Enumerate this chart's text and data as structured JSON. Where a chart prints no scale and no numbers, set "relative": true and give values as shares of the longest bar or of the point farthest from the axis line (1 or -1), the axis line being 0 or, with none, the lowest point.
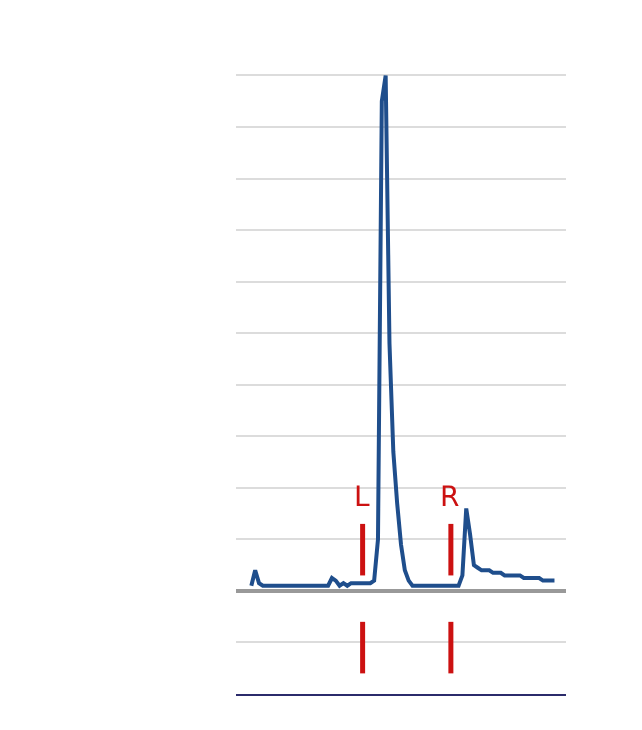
{
  "chart_data": {
    "type": "line",
    "relative": true,
    "grid": true,
    "marker": "none",
    "line_style": "solid",
    "categories": [
      null,
      null,
      null,
      null,
      null,
      null,
      null,
      null,
      null,
      null,
      null,
      null,
      null,
      null,
      null,
      null,
      null,
      null,
      null,
      null,
      null,
      null,
      null,
      null,
      null,
      null,
      null,
      null,
      null,
      null,
      null,
      null,
      null,
      null,
      null,
      null,
      null,
      null,
      null,
      null,
      null,
      null,
      null,
      null,
      null,
      null,
      null,
      null,
      null,
      null,
      null,
      null,
      null,
      null,
      null,
      null,
      null,
      null,
      null,
      null,
      null,
      null,
      null,
      null,
      null,
      null,
      null,
      null,
      null,
      null,
      null,
      null,
      null,
      null,
      null,
      null,
      null,
      null,
      null,
      null
    ],
    "series": [
      {
        "color": "#1f4e8c",
        "values": [
          0.01,
          0.04,
          0.015,
          0.01,
          0.01,
          0.01,
          0.01,
          0.01,
          0.01,
          0.01,
          0.01,
          0.01,
          0.01,
          0.01,
          0.01,
          0.01,
          0.01,
          0.01,
          0.01,
          0.01,
          0.01,
          0.025,
          0.02,
          0.01,
          0.015,
          0.01,
          0.015,
          0.015,
          0.015,
          0.015,
          0.015,
          0.015,
          0.02,
          0.1,
          0.95,
          1,
          0.48,
          0.27,
          0.17,
          0.09,
          0.04,
          0.02,
          0.01,
          0.01,
          0.01,
          0.01,
          0.01,
          0.01,
          0.01,
          0.01,
          0.01,
          0.01,
          0.01,
          0.01,
          0.01,
          0.03,
          0.16,
          0.11,
          0.05,
          0.045,
          0.04,
          0.04,
          0.04,
          0.035,
          0.035,
          0.035,
          0.03,
          0.03,
          0.03,
          0.03,
          0.03,
          0.025,
          0.025,
          0.025,
          0.025,
          0.025,
          0.02,
          0.02,
          0.02,
          0.02
        ]
      }
    ],
    "annotations": [
      "L",
      "R"
    ]
  }
}
